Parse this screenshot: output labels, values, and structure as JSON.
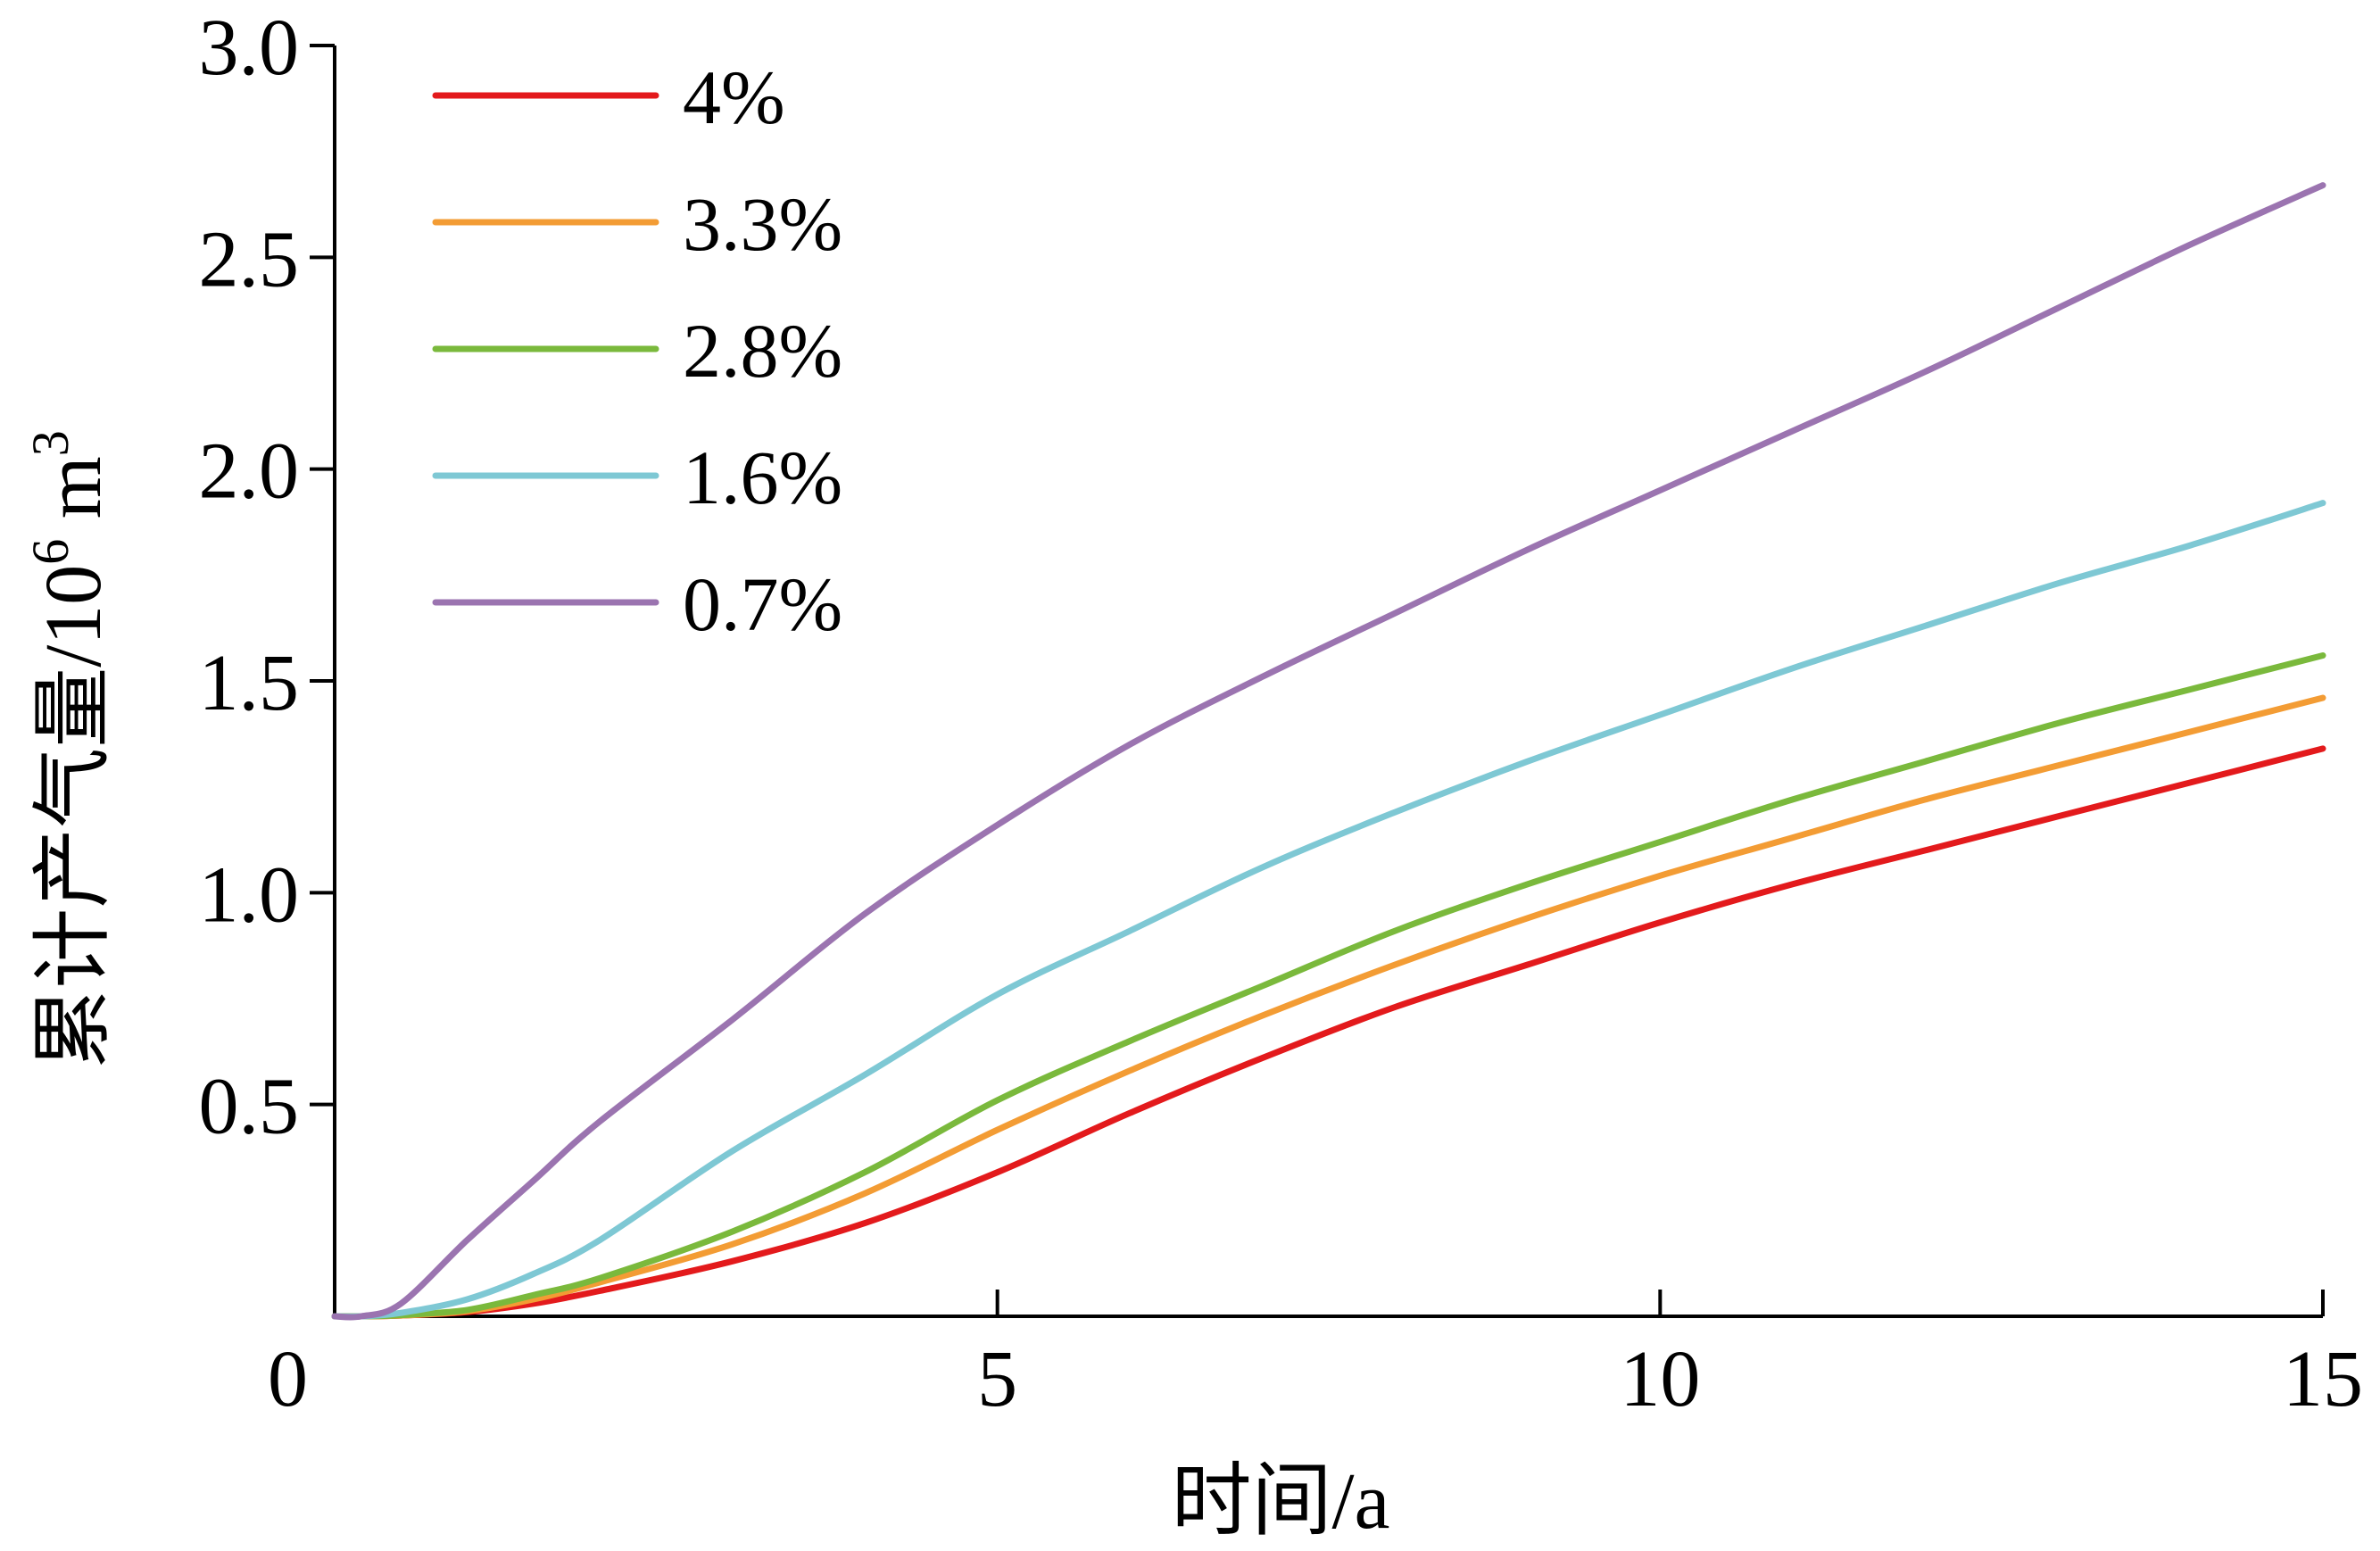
{
  "chart_data": {
    "type": "line",
    "xlabel": "时间/a",
    "ylabel": "累计产气量/10⁶ m³",
    "ylabel_main": "累计产气量/10",
    "ylabel_exp": "6",
    "ylabel_unit": " m",
    "ylabel_unit_exp": "3",
    "xlim": [
      0,
      15
    ],
    "ylim": [
      0,
      3.0
    ],
    "x_ticks": [
      0,
      5,
      10,
      15
    ],
    "x_tick_labels": [
      "0",
      "5",
      "10",
      "15"
    ],
    "y_ticks": [
      0.5,
      1.0,
      1.5,
      2.0,
      2.5,
      3.0
    ],
    "y_tick_labels": [
      "0.5",
      "1.0",
      "1.5",
      "2.0",
      "2.5",
      "3.0"
    ],
    "legend_position": "top-left",
    "x": [
      0,
      0.2,
      0.5,
      1,
      1.5,
      2,
      3,
      4,
      5,
      6,
      7,
      8,
      9,
      10,
      11,
      12,
      13,
      14,
      15
    ],
    "series": [
      {
        "name": "4%",
        "color": "#e31a1c",
        "values": [
          0,
          0,
          0.002,
          0.01,
          0.03,
          0.06,
          0.13,
          0.22,
          0.34,
          0.48,
          0.61,
          0.73,
          0.83,
          0.93,
          1.02,
          1.1,
          1.18,
          1.26,
          1.34
        ]
      },
      {
        "name": "3.3%",
        "color": "#f39c34",
        "values": [
          0,
          0,
          0.002,
          0.012,
          0.04,
          0.08,
          0.17,
          0.29,
          0.44,
          0.58,
          0.71,
          0.83,
          0.94,
          1.04,
          1.13,
          1.22,
          1.3,
          1.38,
          1.46
        ]
      },
      {
        "name": "2.8%",
        "color": "#7ab93c",
        "values": [
          0,
          0,
          0.003,
          0.015,
          0.05,
          0.09,
          0.2,
          0.34,
          0.51,
          0.65,
          0.78,
          0.91,
          1.02,
          1.12,
          1.22,
          1.31,
          1.4,
          1.48,
          1.56
        ]
      },
      {
        "name": "1.6%",
        "color": "#7ec8d4",
        "values": [
          0,
          0,
          0.008,
          0.04,
          0.1,
          0.18,
          0.39,
          0.57,
          0.76,
          0.91,
          1.06,
          1.19,
          1.31,
          1.42,
          1.53,
          1.63,
          1.73,
          1.82,
          1.92
        ]
      },
      {
        "name": "0.7%",
        "color": "#9b74b0",
        "values": [
          0,
          0,
          0.03,
          0.18,
          0.32,
          0.46,
          0.7,
          0.95,
          1.16,
          1.35,
          1.51,
          1.66,
          1.81,
          1.95,
          2.09,
          2.23,
          2.38,
          2.53,
          2.67
        ]
      }
    ]
  }
}
